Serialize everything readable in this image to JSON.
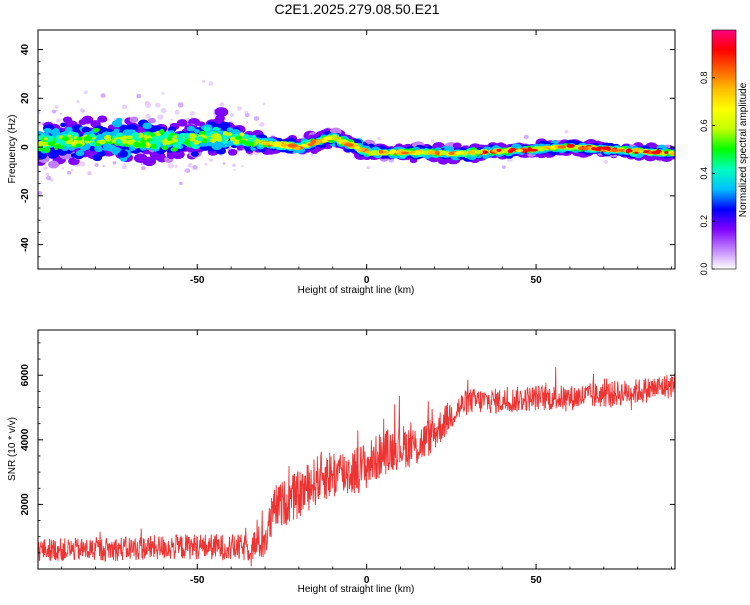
{
  "title": "C2E1.2025.279.08.50.E21",
  "chart_data": [
    {
      "type": "heatmap",
      "xlabel": "Height of straight line (km)",
      "ylabel": "Frequency (Hz)",
      "xlim": [
        -97,
        91
      ],
      "ylim": [
        -50,
        48
      ],
      "xticks": [
        -50,
        0,
        50
      ],
      "yticks": [
        -40,
        -20,
        0,
        20,
        40
      ],
      "description_trend": [
        {
          "x": -95,
          "center": 2,
          "spread": 9
        },
        {
          "x": -80,
          "center": 3,
          "spread": 8
        },
        {
          "x": -60,
          "center": 3,
          "spread": 8
        },
        {
          "x": -40,
          "center": 4,
          "spread": 7
        },
        {
          "x": -33,
          "center": 2,
          "spread": 3
        },
        {
          "x": -20,
          "center": 0,
          "spread": 2.5
        },
        {
          "x": -10,
          "center": 4,
          "spread": 3
        },
        {
          "x": 0,
          "center": -2,
          "spread": 2.5
        },
        {
          "x": 30,
          "center": -2.5,
          "spread": 2.5
        },
        {
          "x": 60,
          "center": 0,
          "spread": 2
        },
        {
          "x": 90,
          "center": -2.5,
          "spread": 2
        }
      ],
      "colorbar": {
        "label": "Normalized spectral amplitude",
        "ticks": [
          0.0,
          0.2,
          0.4,
          0.6,
          0.8
        ],
        "tick_labels": [
          "0.0",
          "0.2",
          "0.4",
          "0.6",
          "0.8"
        ],
        "colors": [
          "#ffffff",
          "#c080ff",
          "#7f00ff",
          "#0000ff",
          "#00bfff",
          "#00ffbf",
          "#00ff00",
          "#bfff00",
          "#ffff00",
          "#ffbf00",
          "#ff6000",
          "#ff0000",
          "#ff0080"
        ]
      }
    },
    {
      "type": "line",
      "xlabel": "Height of straight line (km)",
      "ylabel": "SNR (10 * v/v)",
      "xlim": [
        -97,
        91
      ],
      "ylim": [
        0,
        7400
      ],
      "xticks": [
        -50,
        0,
        50
      ],
      "yticks": [
        2000,
        4000,
        6000
      ],
      "color": "#ee3333",
      "series": [
        {
          "name": "SNR",
          "trend": [
            {
              "x": -97,
              "y": 600
            },
            {
              "x": -80,
              "y": 600
            },
            {
              "x": -65,
              "y": 650
            },
            {
              "x": -50,
              "y": 700
            },
            {
              "x": -35,
              "y": 650
            },
            {
              "x": -30,
              "y": 900
            },
            {
              "x": -27,
              "y": 1900
            },
            {
              "x": -20,
              "y": 2300
            },
            {
              "x": -13,
              "y": 2900
            },
            {
              "x": -5,
              "y": 3000
            },
            {
              "x": 0,
              "y": 3200
            },
            {
              "x": 5,
              "y": 3600
            },
            {
              "x": 10,
              "y": 3800
            },
            {
              "x": 15,
              "y": 3800
            },
            {
              "x": 20,
              "y": 4200
            },
            {
              "x": 25,
              "y": 4800
            },
            {
              "x": 30,
              "y": 5200
            },
            {
              "x": 40,
              "y": 5200
            },
            {
              "x": 50,
              "y": 5300
            },
            {
              "x": 60,
              "y": 5300
            },
            {
              "x": 70,
              "y": 5400
            },
            {
              "x": 80,
              "y": 5500
            },
            {
              "x": 91,
              "y": 5700
            }
          ],
          "noise": [
            {
              "x": -97,
              "amp": 350
            },
            {
              "x": -35,
              "amp": 420
            },
            {
              "x": -28,
              "amp": 700
            },
            {
              "x": -10,
              "amp": 800
            },
            {
              "x": 15,
              "amp": 650
            },
            {
              "x": 30,
              "amp": 400
            },
            {
              "x": 91,
              "amp": 400
            }
          ]
        }
      ]
    }
  ]
}
